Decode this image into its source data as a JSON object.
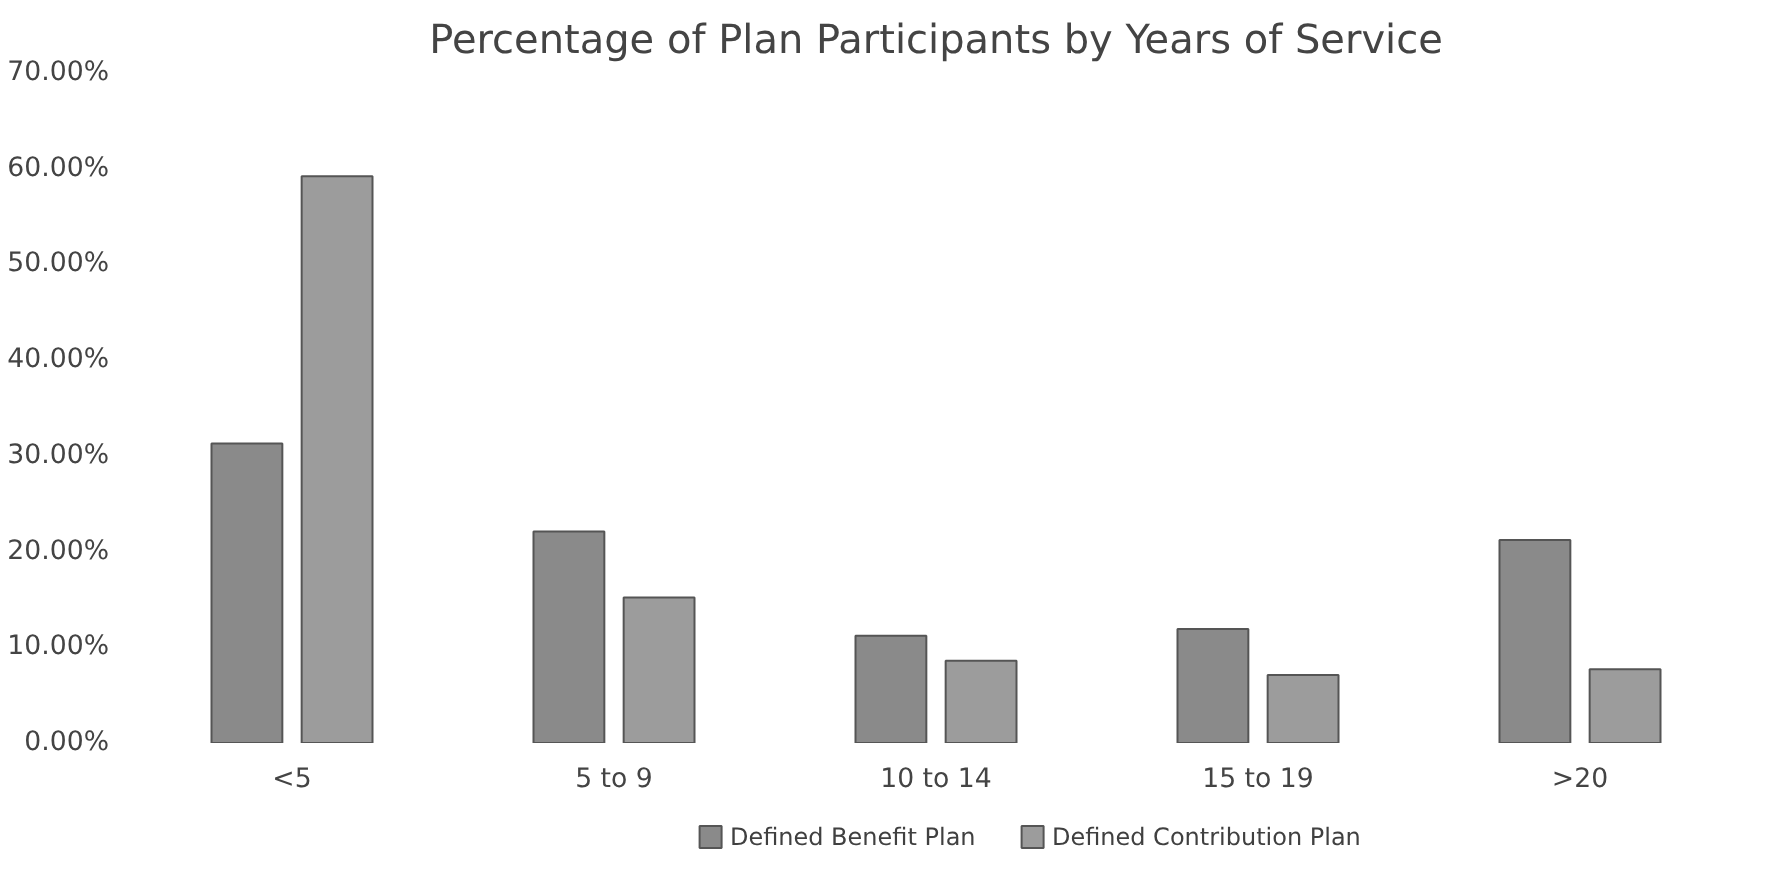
{
  "chart_data": {
    "type": "bar",
    "title": "Percentage of Plan Participants by Years of Service",
    "categories": [
      "<5",
      "5 to 9",
      "10 to 14",
      "15 to 19",
      ">20"
    ],
    "series": [
      {
        "name": "Defined Benefit Plan",
        "color": "#8a8a8a",
        "values": [
          31.3,
          22.1,
          11.2,
          11.9,
          21.2
        ]
      },
      {
        "name": "Defined Contribution Plan",
        "color": "#9c9c9c",
        "values": [
          59.2,
          15.2,
          8.6,
          7.1,
          7.7
        ]
      }
    ],
    "ylim": [
      0,
      70
    ],
    "yticks": [
      {
        "value": 0,
        "label": "0.00%"
      },
      {
        "value": 10,
        "label": "10.00%"
      },
      {
        "value": 20,
        "label": "20.00%"
      },
      {
        "value": 30,
        "label": "30.00%"
      },
      {
        "value": 40,
        "label": "40.00%"
      },
      {
        "value": 50,
        "label": "50.00%"
      },
      {
        "value": 60,
        "label": "60.00%"
      },
      {
        "value": 70,
        "label": "70.00%"
      }
    ],
    "grid": false,
    "legend": "bottom"
  }
}
